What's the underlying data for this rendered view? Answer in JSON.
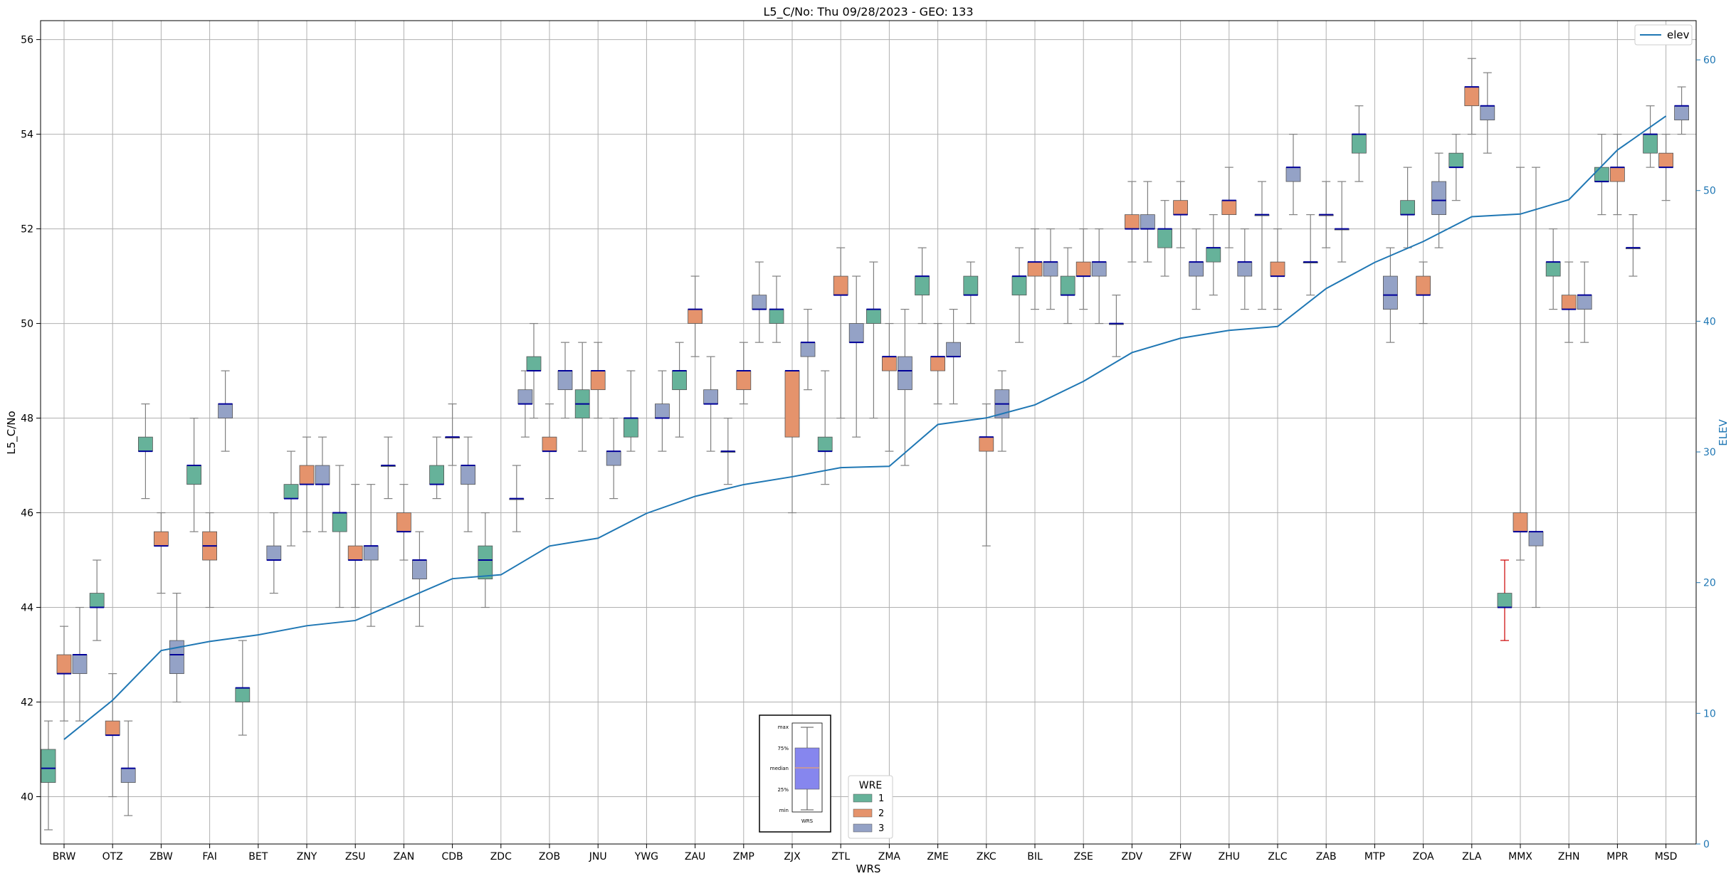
{
  "chart_data": {
    "type": "box",
    "title": "L5_C/No: Thu 09/28/2023 - GEO: 133",
    "xlabel": "WRS",
    "ylabel": "L5_C/No",
    "y2label": "ELEV",
    "ylim": [
      39.0,
      56.4
    ],
    "y2lim": [
      0,
      63
    ],
    "yticks": [
      40,
      42,
      44,
      46,
      48,
      50,
      52,
      54,
      56
    ],
    "y2ticks": [
      0,
      10,
      20,
      30,
      40,
      50,
      60
    ],
    "grid": true,
    "categories": [
      "BRW",
      "OTZ",
      "ZBW",
      "FAI",
      "BET",
      "ZNY",
      "ZSU",
      "ZAN",
      "CDB",
      "ZDC",
      "ZOB",
      "JNU",
      "YWG",
      "ZAU",
      "ZMP",
      "ZJX",
      "ZTL",
      "ZMA",
      "ZME",
      "ZKC",
      "BIL",
      "ZSE",
      "ZDV",
      "ZFW",
      "ZHU",
      "ZLC",
      "ZAB",
      "MTP",
      "ZOA",
      "ZLA",
      "MMX",
      "ZHN",
      "MPR",
      "MSD"
    ],
    "wre_colors": {
      "1": "#66b29a",
      "2": "#e5936c",
      "3": "#94a2c6"
    },
    "median_color": "#000099",
    "whisker_color": "#808080",
    "highlight_whisker_color": "#cc0000",
    "box_legend": {
      "title": "WRE",
      "labels": [
        "1",
        "2",
        "3"
      ]
    },
    "elev_legend": {
      "label": "elev",
      "color": "#1f77b4"
    },
    "inset": {
      "labels": [
        "max",
        "75%",
        "median",
        "25%",
        "min"
      ],
      "xlabel": "WRS",
      "fill": "#8686ee",
      "median_color": "#e8a070"
    },
    "boxes": [
      {
        "cat": "BRW",
        "wre": 1,
        "min": 39.3,
        "q1": 40.3,
        "med": 40.6,
        "q3": 41.0,
        "max": 41.6
      },
      {
        "cat": "BRW",
        "wre": 2,
        "min": 41.6,
        "q1": 42.6,
        "med": 42.6,
        "q3": 43.0,
        "max": 43.6
      },
      {
        "cat": "BRW",
        "wre": 3,
        "min": 41.6,
        "q1": 42.6,
        "med": 43.0,
        "q3": 43.0,
        "max": 44.0
      },
      {
        "cat": "OTZ",
        "wre": 1,
        "min": 43.3,
        "q1": 44.0,
        "med": 44.0,
        "q3": 44.3,
        "max": 45.0
      },
      {
        "cat": "OTZ",
        "wre": 2,
        "min": 40.0,
        "q1": 41.3,
        "med": 41.3,
        "q3": 41.6,
        "max": 42.6
      },
      {
        "cat": "OTZ",
        "wre": 3,
        "min": 39.6,
        "q1": 40.3,
        "med": 40.6,
        "q3": 40.6,
        "max": 41.6
      },
      {
        "cat": "ZBW",
        "wre": 1,
        "min": 46.3,
        "q1": 47.3,
        "med": 47.3,
        "q3": 47.6,
        "max": 48.3
      },
      {
        "cat": "ZBW",
        "wre": 2,
        "min": 44.3,
        "q1": 45.3,
        "med": 45.3,
        "q3": 45.6,
        "max": 46.0
      },
      {
        "cat": "ZBW",
        "wre": 3,
        "min": 42.0,
        "q1": 42.6,
        "med": 43.0,
        "q3": 43.3,
        "max": 44.3
      },
      {
        "cat": "FAI",
        "wre": 1,
        "min": 45.6,
        "q1": 46.6,
        "med": 47.0,
        "q3": 47.0,
        "max": 48.0
      },
      {
        "cat": "FAI",
        "wre": 2,
        "min": 44.0,
        "q1": 45.0,
        "med": 45.3,
        "q3": 45.6,
        "max": 46.0
      },
      {
        "cat": "FAI",
        "wre": 3,
        "min": 47.3,
        "q1": 48.0,
        "med": 48.3,
        "q3": 48.3,
        "max": 49.0
      },
      {
        "cat": "BET",
        "wre": 1,
        "min": 41.3,
        "q1": 42.0,
        "med": 42.3,
        "q3": 42.3,
        "max": 43.3
      },
      {
        "cat": "BET",
        "wre": 3,
        "min": 44.3,
        "q1": 45.0,
        "med": 45.0,
        "q3": 45.3,
        "max": 46.0
      },
      {
        "cat": "ZNY",
        "wre": 1,
        "min": 45.3,
        "q1": 46.3,
        "med": 46.3,
        "q3": 46.6,
        "max": 47.3
      },
      {
        "cat": "ZNY",
        "wre": 2,
        "min": 45.6,
        "q1": 46.6,
        "med": 46.6,
        "q3": 47.0,
        "max": 47.6
      },
      {
        "cat": "ZNY",
        "wre": 3,
        "min": 45.6,
        "q1": 46.6,
        "med": 46.6,
        "q3": 47.0,
        "max": 47.6
      },
      {
        "cat": "ZSU",
        "wre": 1,
        "min": 44.0,
        "q1": 45.6,
        "med": 46.0,
        "q3": 46.0,
        "max": 47.0
      },
      {
        "cat": "ZSU",
        "wre": 2,
        "min": 44.0,
        "q1": 45.0,
        "med": 45.0,
        "q3": 45.3,
        "max": 46.6
      },
      {
        "cat": "ZSU",
        "wre": 3,
        "min": 43.6,
        "q1": 45.0,
        "med": 45.3,
        "q3": 45.3,
        "max": 46.6
      },
      {
        "cat": "ZAN",
        "wre": 1,
        "min": 46.3,
        "q1": 47.0,
        "med": 47.0,
        "q3": 47.0,
        "max": 47.6
      },
      {
        "cat": "ZAN",
        "wre": 2,
        "min": 45.0,
        "q1": 45.6,
        "med": 45.6,
        "q3": 46.0,
        "max": 46.6
      },
      {
        "cat": "ZAN",
        "wre": 3,
        "min": 43.6,
        "q1": 44.6,
        "med": 45.0,
        "q3": 45.0,
        "max": 45.6
      },
      {
        "cat": "CDB",
        "wre": 1,
        "min": 46.3,
        "q1": 46.6,
        "med": 46.6,
        "q3": 47.0,
        "max": 47.6
      },
      {
        "cat": "CDB",
        "wre": 2,
        "min": 47.0,
        "q1": 47.6,
        "med": 47.6,
        "q3": 47.6,
        "max": 48.3
      },
      {
        "cat": "CDB",
        "wre": 3,
        "min": 45.6,
        "q1": 46.6,
        "med": 47.0,
        "q3": 47.0,
        "max": 47.6
      },
      {
        "cat": "ZDC",
        "wre": 1,
        "min": 44.0,
        "q1": 44.6,
        "med": 45.0,
        "q3": 45.3,
        "max": 46.0
      },
      {
        "cat": "ZDC",
        "wre": 3,
        "min": 45.6,
        "q1": 46.3,
        "med": 46.3,
        "q3": 46.3,
        "max": 47.0
      },
      {
        "cat": "ZDC",
        "wre": 3,
        "min": 47.6,
        "q1": 48.3,
        "med": 48.3,
        "q3": 48.6,
        "max": 49.0,
        "slot": 2.55
      },
      {
        "cat": "ZOB",
        "wre": 1,
        "min": 48.0,
        "q1": 49.0,
        "med": 49.0,
        "q3": 49.3,
        "max": 50.0
      },
      {
        "cat": "ZOB",
        "wre": 2,
        "min": 46.3,
        "q1": 47.3,
        "med": 47.3,
        "q3": 47.6,
        "max": 48.3
      },
      {
        "cat": "ZOB",
        "wre": 3,
        "min": 48.0,
        "q1": 48.6,
        "med": 49.0,
        "q3": 49.0,
        "max": 49.6
      },
      {
        "cat": "JNU",
        "wre": 1,
        "min": 47.3,
        "q1": 48.0,
        "med": 48.3,
        "q3": 48.6,
        "max": 49.6
      },
      {
        "cat": "JNU",
        "wre": 2,
        "min": 48.0,
        "q1": 48.6,
        "med": 49.0,
        "q3": 49.0,
        "max": 49.6
      },
      {
        "cat": "JNU",
        "wre": 3,
        "min": 46.3,
        "q1": 47.0,
        "med": 47.3,
        "q3": 47.3,
        "max": 48.0
      },
      {
        "cat": "YWG",
        "wre": 1,
        "min": 47.3,
        "q1": 47.6,
        "med": 48.0,
        "q3": 48.0,
        "max": 49.0
      },
      {
        "cat": "YWG",
        "wre": 3,
        "min": 47.3,
        "q1": 48.0,
        "med": 48.0,
        "q3": 48.3,
        "max": 49.0
      },
      {
        "cat": "ZAU",
        "wre": 1,
        "min": 47.6,
        "q1": 48.6,
        "med": 49.0,
        "q3": 49.0,
        "max": 49.6
      },
      {
        "cat": "ZAU",
        "wre": 2,
        "min": 49.3,
        "q1": 50.0,
        "med": 50.3,
        "q3": 50.3,
        "max": 51.0
      },
      {
        "cat": "ZAU",
        "wre": 3,
        "min": 47.3,
        "q1": 48.3,
        "med": 48.3,
        "q3": 48.6,
        "max": 49.3
      },
      {
        "cat": "ZMP",
        "wre": 1,
        "min": 46.6,
        "q1": 47.3,
        "med": 47.3,
        "q3": 47.3,
        "max": 48.0
      },
      {
        "cat": "ZMP",
        "wre": 2,
        "min": 48.3,
        "q1": 48.6,
        "med": 49.0,
        "q3": 49.0,
        "max": 49.6
      },
      {
        "cat": "ZMP",
        "wre": 3,
        "min": 49.6,
        "q1": 50.3,
        "med": 50.3,
        "q3": 50.6,
        "max": 51.3
      },
      {
        "cat": "ZJX",
        "wre": 1,
        "min": 49.6,
        "q1": 50.0,
        "med": 50.3,
        "q3": 50.3,
        "max": 51.0
      },
      {
        "cat": "ZJX",
        "wre": 2,
        "min": 46.0,
        "q1": 47.6,
        "med": 49.0,
        "q3": 49.0,
        "max": 49.0
      },
      {
        "cat": "ZJX",
        "wre": 3,
        "min": 48.6,
        "q1": 49.3,
        "med": 49.6,
        "q3": 49.6,
        "max": 50.3
      },
      {
        "cat": "ZTL",
        "wre": 1,
        "min": 46.6,
        "q1": 47.3,
        "med": 47.3,
        "q3": 47.6,
        "max": 49.0
      },
      {
        "cat": "ZTL",
        "wre": 2,
        "min": 48.0,
        "q1": 50.6,
        "med": 50.6,
        "q3": 51.0,
        "max": 51.6
      },
      {
        "cat": "ZTL",
        "wre": 3,
        "min": 47.6,
        "q1": 49.6,
        "med": 49.6,
        "q3": 50.0,
        "max": 51.0
      },
      {
        "cat": "ZMA",
        "wre": 1,
        "min": 48.0,
        "q1": 50.0,
        "med": 50.3,
        "q3": 50.3,
        "max": 51.3
      },
      {
        "cat": "ZMA",
        "wre": 2,
        "min": 47.3,
        "q1": 49.0,
        "med": 49.3,
        "q3": 49.3,
        "max": 50.0
      },
      {
        "cat": "ZMA",
        "wre": 3,
        "min": 47.0,
        "q1": 48.6,
        "med": 49.0,
        "q3": 49.3,
        "max": 50.3
      },
      {
        "cat": "ZME",
        "wre": 1,
        "min": 50.0,
        "q1": 50.6,
        "med": 51.0,
        "q3": 51.0,
        "max": 51.6
      },
      {
        "cat": "ZME",
        "wre": 2,
        "min": 48.3,
        "q1": 49.0,
        "med": 49.3,
        "q3": 49.3,
        "max": 50.0
      },
      {
        "cat": "ZME",
        "wre": 3,
        "min": 48.3,
        "q1": 49.3,
        "med": 49.3,
        "q3": 49.6,
        "max": 50.3
      },
      {
        "cat": "ZKC",
        "wre": 1,
        "min": 50.0,
        "q1": 50.6,
        "med": 50.6,
        "q3": 51.0,
        "max": 51.3
      },
      {
        "cat": "ZKC",
        "wre": 2,
        "min": 45.3,
        "q1": 47.3,
        "med": 47.6,
        "q3": 47.6,
        "max": 48.3
      },
      {
        "cat": "ZKC",
        "wre": 3,
        "min": 47.3,
        "q1": 48.0,
        "med": 48.3,
        "q3": 48.6,
        "max": 49.0
      },
      {
        "cat": "BIL",
        "wre": 1,
        "min": 49.6,
        "q1": 50.6,
        "med": 51.0,
        "q3": 51.0,
        "max": 51.6
      },
      {
        "cat": "BIL",
        "wre": 2,
        "min": 50.3,
        "q1": 51.0,
        "med": 51.3,
        "q3": 51.3,
        "max": 52.0
      },
      {
        "cat": "BIL",
        "wre": 3,
        "min": 50.3,
        "q1": 51.0,
        "med": 51.3,
        "q3": 51.3,
        "max": 52.0
      },
      {
        "cat": "ZSE",
        "wre": 1,
        "min": 50.0,
        "q1": 50.6,
        "med": 50.6,
        "q3": 51.0,
        "max": 51.6
      },
      {
        "cat": "ZSE",
        "wre": 2,
        "min": 50.3,
        "q1": 51.0,
        "med": 51.0,
        "q3": 51.3,
        "max": 52.0
      },
      {
        "cat": "ZSE",
        "wre": 3,
        "min": 50.0,
        "q1": 51.0,
        "med": 51.3,
        "q3": 51.3,
        "max": 52.0
      },
      {
        "cat": "ZDV",
        "wre": 1,
        "min": 49.3,
        "q1": 50.0,
        "med": 50.0,
        "q3": 50.0,
        "max": 50.6
      },
      {
        "cat": "ZDV",
        "wre": 2,
        "min": 51.3,
        "q1": 52.0,
        "med": 52.0,
        "q3": 52.3,
        "max": 53.0
      },
      {
        "cat": "ZDV",
        "wre": 3,
        "min": 51.3,
        "q1": 52.0,
        "med": 52.0,
        "q3": 52.3,
        "max": 53.0
      },
      {
        "cat": "ZFW",
        "wre": 1,
        "min": 51.0,
        "q1": 51.6,
        "med": 52.0,
        "q3": 52.0,
        "max": 52.6
      },
      {
        "cat": "ZFW",
        "wre": 2,
        "min": 51.6,
        "q1": 52.3,
        "med": 52.3,
        "q3": 52.6,
        "max": 53.0
      },
      {
        "cat": "ZFW",
        "wre": 3,
        "min": 50.3,
        "q1": 51.0,
        "med": 51.3,
        "q3": 51.3,
        "max": 52.0
      },
      {
        "cat": "ZHU",
        "wre": 1,
        "min": 50.6,
        "q1": 51.3,
        "med": 51.6,
        "q3": 51.6,
        "max": 52.3
      },
      {
        "cat": "ZHU",
        "wre": 2,
        "min": 51.6,
        "q1": 52.3,
        "med": 52.6,
        "q3": 52.6,
        "max": 53.3
      },
      {
        "cat": "ZHU",
        "wre": 3,
        "min": 50.3,
        "q1": 51.0,
        "med": 51.3,
        "q3": 51.3,
        "max": 52.0
      },
      {
        "cat": "ZLC",
        "wre": 1,
        "min": 50.3,
        "q1": 52.3,
        "med": 52.3,
        "q3": 52.3,
        "max": 53.0
      },
      {
        "cat": "ZLC",
        "wre": 2,
        "min": 50.3,
        "q1": 51.0,
        "med": 51.0,
        "q3": 51.3,
        "max": 52.0
      },
      {
        "cat": "ZLC",
        "wre": 3,
        "min": 52.3,
        "q1": 53.0,
        "med": 53.3,
        "q3": 53.3,
        "max": 54.0
      },
      {
        "cat": "ZAB",
        "wre": 1,
        "min": 50.6,
        "q1": 51.3,
        "med": 51.3,
        "q3": 51.3,
        "max": 52.3
      },
      {
        "cat": "ZAB",
        "wre": 2,
        "min": 51.6,
        "q1": 52.3,
        "med": 52.3,
        "q3": 52.3,
        "max": 53.0
      },
      {
        "cat": "ZAB",
        "wre": 3,
        "min": 51.3,
        "q1": 52.0,
        "med": 52.0,
        "q3": 52.0,
        "max": 53.0
      },
      {
        "cat": "MTP",
        "wre": 1,
        "min": 53.0,
        "q1": 53.6,
        "med": 54.0,
        "q3": 54.0,
        "max": 54.6
      },
      {
        "cat": "MTP",
        "wre": 3,
        "min": 49.6,
        "q1": 50.3,
        "med": 50.6,
        "q3": 51.0,
        "max": 51.6
      },
      {
        "cat": "ZOA",
        "wre": 1,
        "min": 51.6,
        "q1": 52.3,
        "med": 52.3,
        "q3": 52.6,
        "max": 53.3
      },
      {
        "cat": "ZOA",
        "wre": 2,
        "min": 50.0,
        "q1": 50.6,
        "med": 50.6,
        "q3": 51.0,
        "max": 51.3
      },
      {
        "cat": "ZOA",
        "wre": 3,
        "min": 51.6,
        "q1": 52.3,
        "med": 52.6,
        "q3": 53.0,
        "max": 53.6
      },
      {
        "cat": "ZLA",
        "wre": 1,
        "min": 52.6,
        "q1": 53.3,
        "med": 53.3,
        "q3": 53.6,
        "max": 54.0
      },
      {
        "cat": "ZLA",
        "wre": 2,
        "min": 54.0,
        "q1": 54.6,
        "med": 55.0,
        "q3": 55.0,
        "max": 55.6
      },
      {
        "cat": "ZLA",
        "wre": 3,
        "min": 53.6,
        "q1": 54.3,
        "med": 54.6,
        "q3": 54.6,
        "max": 55.3
      },
      {
        "cat": "MMX",
        "wre": 1,
        "min": 43.3,
        "q1": 44.0,
        "med": 44.0,
        "q3": 44.3,
        "max": 45.0,
        "red": true
      },
      {
        "cat": "MMX",
        "wre": 2,
        "min": 45.0,
        "q1": 45.6,
        "med": 45.6,
        "q3": 46.0,
        "max": 53.3
      },
      {
        "cat": "MMX",
        "wre": 3,
        "min": 44.0,
        "q1": 45.3,
        "med": 45.6,
        "q3": 45.6,
        "max": 53.3
      },
      {
        "cat": "ZHN",
        "wre": 1,
        "min": 50.3,
        "q1": 51.0,
        "med": 51.3,
        "q3": 51.3,
        "max": 52.0
      },
      {
        "cat": "ZHN",
        "wre": 2,
        "min": 49.6,
        "q1": 50.3,
        "med": 50.3,
        "q3": 50.6,
        "max": 51.3
      },
      {
        "cat": "ZHN",
        "wre": 3,
        "min": 49.6,
        "q1": 50.3,
        "med": 50.6,
        "q3": 50.6,
        "max": 51.3
      },
      {
        "cat": "MPR",
        "wre": 1,
        "min": 52.3,
        "q1": 53.0,
        "med": 53.0,
        "q3": 53.3,
        "max": 54.0
      },
      {
        "cat": "MPR",
        "wre": 2,
        "min": 52.3,
        "q1": 53.0,
        "med": 53.3,
        "q3": 53.3,
        "max": 54.0
      },
      {
        "cat": "MPR",
        "wre": 3,
        "min": 51.0,
        "q1": 51.6,
        "med": 51.6,
        "q3": 51.6,
        "max": 52.3
      },
      {
        "cat": "MSD",
        "wre": 1,
        "min": 53.3,
        "q1": 53.6,
        "med": 54.0,
        "q3": 54.0,
        "max": 54.6
      },
      {
        "cat": "MSD",
        "wre": 2,
        "min": 52.6,
        "q1": 53.3,
        "med": 53.3,
        "q3": 53.6,
        "max": 54.0
      },
      {
        "cat": "MSD",
        "wre": 3,
        "min": 54.0,
        "q1": 54.3,
        "med": 54.6,
        "q3": 54.6,
        "max": 55.0
      }
    ],
    "elev": [
      8,
      11,
      14.8,
      15.5,
      16,
      16.7,
      17.1,
      18.7,
      20.3,
      20.6,
      22.8,
      23.4,
      25.3,
      26.6,
      27.5,
      28.1,
      28.8,
      28.9,
      32.1,
      32.6,
      33.6,
      35.4,
      37.6,
      38.7,
      39.3,
      39.6,
      42.5,
      44.5,
      46.1,
      48,
      48.2,
      49.3,
      53.1,
      55.7
    ]
  }
}
